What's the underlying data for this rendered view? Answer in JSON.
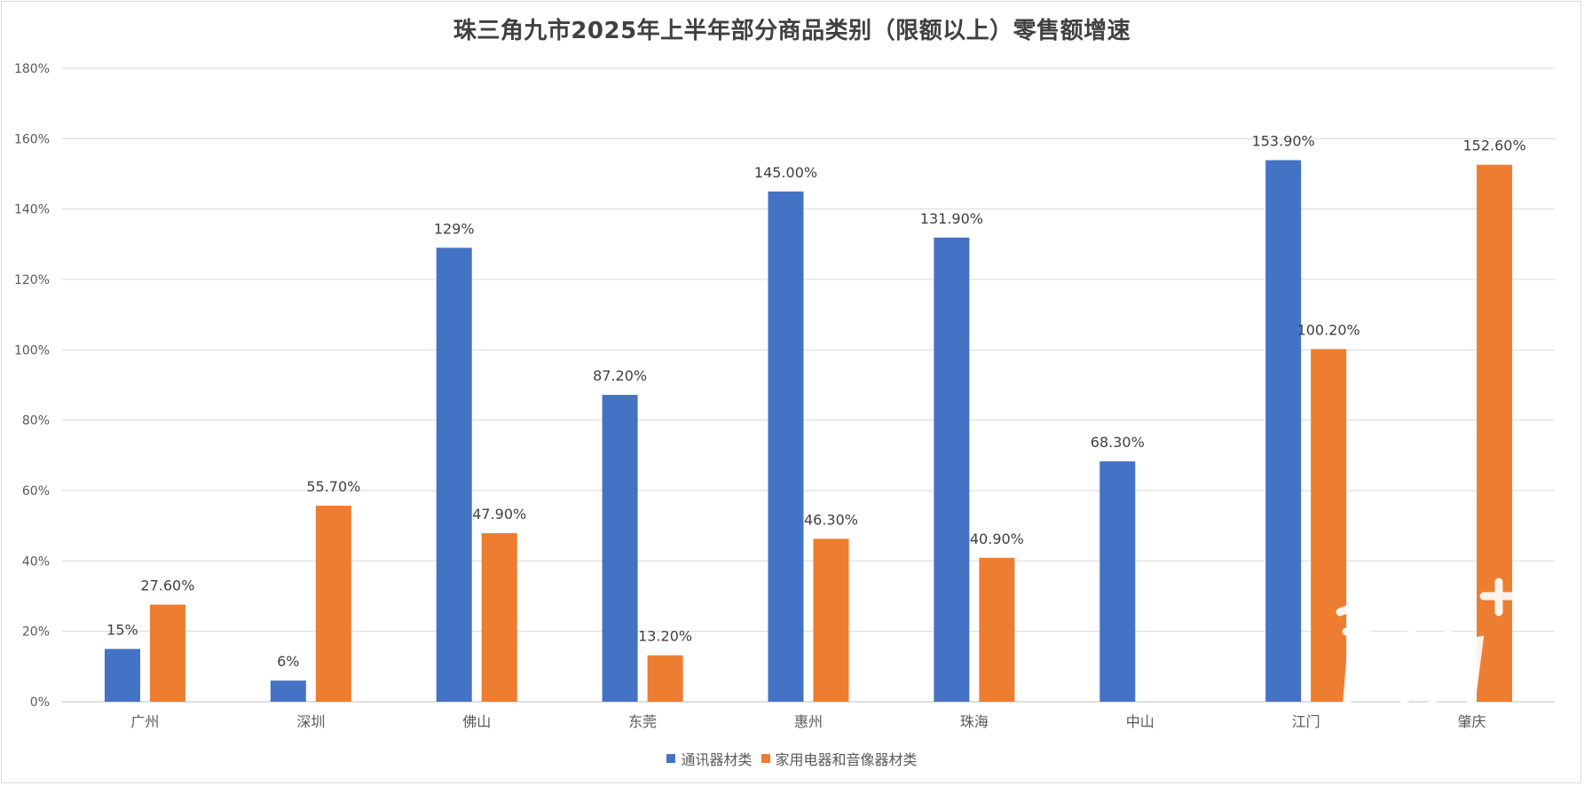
{
  "chart_data": {
    "type": "bar",
    "title": "珠三角九市2025年上半年部分商品类别（限额以上）零售额增速",
    "categories": [
      "广州",
      "深圳",
      "佛山",
      "东莞",
      "惠州",
      "珠海",
      "中山",
      "江门",
      "肇庆"
    ],
    "series": [
      {
        "name": "通讯器材类",
        "color": "#4472C4",
        "values": [
          15,
          6,
          129,
          87.2,
          145.0,
          131.9,
          68.3,
          153.9,
          null
        ],
        "labels": [
          "15%",
          "6%",
          "129%",
          "87.20%",
          "145.00%",
          "131.90%",
          "68.30%",
          "153.90%",
          ""
        ]
      },
      {
        "name": "家用电器和音像器材类",
        "color": "#ED7D31",
        "values": [
          27.6,
          55.7,
          47.9,
          13.2,
          46.3,
          40.9,
          null,
          100.2,
          152.6
        ],
        "labels": [
          "27.60%",
          "55.70%",
          "47.90%",
          "13.20%",
          "46.30%",
          "40.90%",
          "",
          "100.20%",
          "152.60%"
        ]
      }
    ],
    "ylim": [
      0,
      180
    ],
    "yticks": [
      "0%",
      "20%",
      "40%",
      "60%",
      "80%",
      "100%",
      "120%",
      "140%",
      "160%",
      "180%"
    ],
    "grid": true,
    "legend_position": "bottom"
  },
  "watermark": "南方+"
}
